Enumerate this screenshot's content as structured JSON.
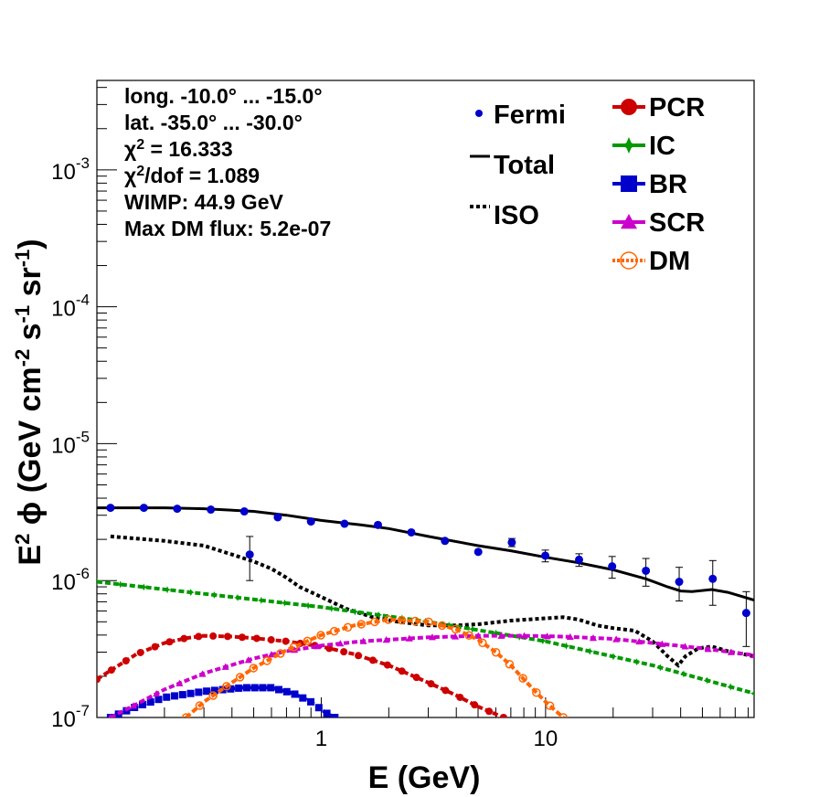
{
  "chart_data": {
    "type": "scatter",
    "title": "",
    "xlabel": "E (GeV)",
    "ylabel": "E² ϕ (GeV cm⁻² s⁻¹ sr⁻¹)",
    "x_scale": "log",
    "y_scale": "log",
    "xlim": [
      0.1,
      85
    ],
    "ylim": [
      1e-07,
      0.0045
    ],
    "grid": false,
    "x_tick_labels": [
      {
        "value": 1,
        "label": "1"
      },
      {
        "value": 10,
        "label": "10"
      }
    ],
    "y_tick_labels": [
      {
        "value": 1e-07,
        "mant": "10",
        "exp": "-7"
      },
      {
        "value": 1e-06,
        "mant": "10",
        "exp": "-6"
      },
      {
        "value": 1e-05,
        "mant": "10",
        "exp": "-5"
      },
      {
        "value": 0.0001,
        "mant": "10",
        "exp": "-4"
      },
      {
        "value": 0.001,
        "mant": "10",
        "exp": "-3"
      }
    ],
    "info_lines": [
      "long. -10.0° ... -15.0°",
      "lat. -35.0° ... -30.0°",
      "χ² = 16.333",
      "χ²/dof = 1.089",
      "WIMP: 44.9 GeV",
      "Max DM flux: 5.2e-07"
    ],
    "legend_left": [
      {
        "name": "Fermi",
        "color": "#0000cc",
        "symbol": "dot"
      },
      {
        "name": "Total",
        "color": "#000000",
        "symbol": "line"
      },
      {
        "name": "ISO",
        "color": "#000000",
        "symbol": "dotted"
      }
    ],
    "legend_right": [
      {
        "name": "PCR",
        "color": "#cc0000",
        "symbol": "circle"
      },
      {
        "name": "IC",
        "color": "#009900",
        "symbol": "star"
      },
      {
        "name": "BR",
        "color": "#0000cc",
        "symbol": "square"
      },
      {
        "name": "SCR",
        "color": "#cc00cc",
        "symbol": "triangle"
      },
      {
        "name": "DM",
        "color": "#ff6600",
        "symbol": "open-circle"
      }
    ],
    "fermi": {
      "x": [
        0.115,
        0.162,
        0.228,
        0.322,
        0.454,
        0.64,
        0.9,
        1.27,
        1.79,
        2.52,
        3.56,
        5.01,
        7.07,
        9.97,
        14.1,
        19.8,
        28.0,
        39.4,
        55.6,
        78.4,
        0.48
      ],
      "y": [
        3.4e-06,
        3.4e-06,
        3.35e-06,
        3.3e-06,
        3.2e-06,
        2.9e-06,
        2.7e-06,
        2.6e-06,
        2.55e-06,
        2.25e-06,
        1.95e-06,
        1.62e-06,
        1.9e-06,
        1.52e-06,
        1.42e-06,
        1.27e-06,
        1.18e-06,
        9.8e-07,
        1.03e-06,
        5.8e-07,
        1.55e-06
      ],
      "y_err": [
        0,
        0,
        0,
        0,
        0,
        0,
        0,
        0,
        0,
        0,
        0,
        0,
        1.3e-07,
        1.5e-07,
        1.5e-07,
        2.3e-07,
        2.7e-07,
        2.7e-07,
        3.7e-07,
        2.5e-07,
        5.5e-07
      ]
    },
    "series": [
      {
        "name": "Total",
        "color": "#000000",
        "style": "line",
        "x": [
          0.1,
          0.2,
          0.3,
          0.5,
          0.7,
          1.0,
          1.5,
          2.0,
          3.0,
          5.0,
          7.0,
          10.0,
          14.0,
          20.0,
          28.0,
          35.0,
          40.0,
          45.0,
          55.0,
          65.0,
          85.0
        ],
        "y": [
          3.4e-06,
          3.4e-06,
          3.35e-06,
          3.2e-06,
          3e-06,
          2.75e-06,
          2.55e-06,
          2.4e-06,
          2.1e-06,
          1.8e-06,
          1.65e-06,
          1.48e-06,
          1.35e-06,
          1.2e-06,
          1.03e-06,
          9e-07,
          8.4e-07,
          8.3e-07,
          8.6e-07,
          8.2e-07,
          7.2e-07
        ]
      },
      {
        "name": "ISO",
        "color": "#000000",
        "style": "dotted",
        "x": [
          0.115,
          0.2,
          0.3,
          0.4,
          0.5,
          0.6,
          0.7,
          0.8,
          1.0,
          1.3,
          1.7,
          2.2,
          3.0,
          4.0,
          5.0,
          7.0,
          10.0,
          12.0,
          14.0,
          17.0,
          20.0,
          25.0,
          30.0,
          35.0,
          39.0,
          42.0,
          48.0,
          55.0,
          65.0,
          85.0
        ],
        "y": [
          2.1e-06,
          1.95e-06,
          1.8e-06,
          1.55e-06,
          1.38e-06,
          1.22e-06,
          1.05e-06,
          9e-07,
          7.6e-07,
          6.2e-07,
          5.4e-07,
          5e-07,
          4.7e-07,
          4.7e-07,
          4.8e-07,
          5.1e-07,
          5.3e-07,
          5.4e-07,
          5.2e-07,
          4.7e-07,
          4.5e-07,
          4.3e-07,
          3.6e-07,
          2.8e-07,
          2.4e-07,
          2.8e-07,
          3.2e-07,
          3.3e-07,
          3.05e-07,
          2.8e-07
        ]
      },
      {
        "name": "PCR",
        "color": "#cc0000",
        "style": "dashed-marker",
        "marker": "circle",
        "x": [
          0.1,
          0.12,
          0.15,
          0.2,
          0.25,
          0.3,
          0.4,
          0.5,
          0.7,
          1.0,
          1.4,
          2.0,
          3.0,
          4.0,
          5.0,
          6.5
        ],
        "y": [
          1.9e-07,
          2.3e-07,
          2.9e-07,
          3.5e-07,
          3.8e-07,
          3.95e-07,
          3.9e-07,
          3.8e-07,
          3.6e-07,
          3.3e-07,
          2.9e-07,
          2.4e-07,
          1.8e-07,
          1.45e-07,
          1.2e-07,
          1e-07
        ]
      },
      {
        "name": "IC",
        "color": "#009900",
        "style": "dashed-marker",
        "marker": "star",
        "x": [
          0.1,
          0.3,
          1.0,
          3.0,
          10.0,
          30.0,
          85.0
        ],
        "y": [
          9.8e-07,
          8e-07,
          6.4e-07,
          5e-07,
          3.6e-07,
          2.4e-07,
          1.5e-07
        ]
      },
      {
        "name": "BR",
        "color": "#0000cc",
        "style": "dashed-marker",
        "marker": "square",
        "x": [
          0.115,
          0.15,
          0.2,
          0.3,
          0.45,
          0.6,
          0.75,
          0.9,
          1.05,
          1.15
        ],
        "y": [
          1e-07,
          1.2e-07,
          1.4e-07,
          1.55e-07,
          1.65e-07,
          1.65e-07,
          1.5e-07,
          1.3e-07,
          1.08e-07,
          1e-07
        ]
      },
      {
        "name": "SCR",
        "color": "#cc00cc",
        "style": "dashed-marker",
        "marker": "triangle",
        "x": [
          0.115,
          0.15,
          0.2,
          0.3,
          0.5,
          0.7,
          1.0,
          1.5,
          2.0,
          3.0,
          5.0,
          8.0,
          12.0,
          20.0,
          30.0,
          50.0,
          85.0
        ],
        "y": [
          1e-07,
          1.25e-07,
          1.6e-07,
          2.1e-07,
          2.7e-07,
          3.05e-07,
          3.35e-07,
          3.6e-07,
          3.7e-07,
          3.85e-07,
          3.95e-07,
          3.95e-07,
          3.9e-07,
          3.75e-07,
          3.5e-07,
          3.2e-07,
          2.85e-07
        ]
      },
      {
        "name": "DM",
        "color": "#ff6600",
        "style": "dashed-marker",
        "marker": "open-circle",
        "x": [
          0.25,
          0.3,
          0.4,
          0.5,
          0.7,
          1.0,
          1.4,
          2.0,
          3.0,
          4.0,
          5.0,
          6.0,
          7.0,
          8.0,
          9.0,
          10.0,
          11.0,
          12.0
        ],
        "y": [
          1e-07,
          1.3e-07,
          1.8e-07,
          2.3e-07,
          3.1e-07,
          4e-07,
          4.7e-07,
          5.2e-07,
          5e-07,
          4.4e-07,
          3.7e-07,
          3e-07,
          2.4e-07,
          1.9e-07,
          1.55e-07,
          1.3e-07,
          1.13e-07,
          1e-07
        ]
      }
    ]
  }
}
